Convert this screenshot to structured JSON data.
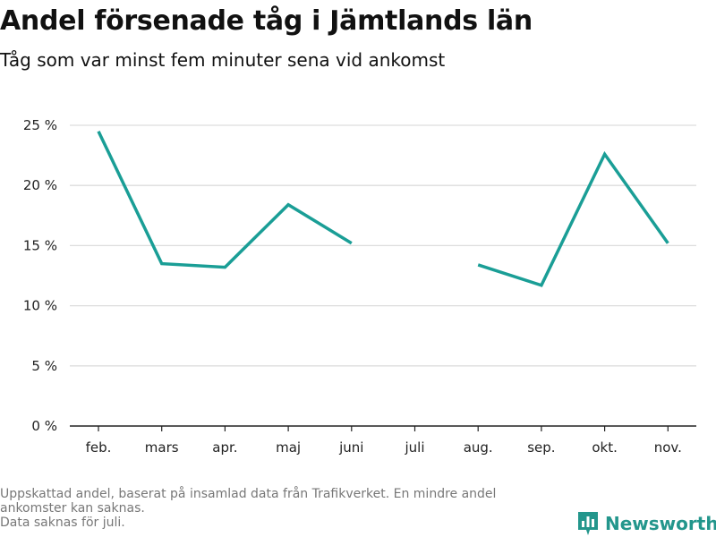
{
  "title": "Andel försenade tåg i Jämtlands län",
  "subtitle": "Tåg som var minst fem minuter sena vid ankomst",
  "footnote": {
    "line1": "Uppskattad andel, baserat på insamlad data från Trafikverket. En mindre andel",
    "line2": "ankomster kan saknas.",
    "line3": "Data saknas för juli."
  },
  "brand": {
    "name": "Newsworthy",
    "icon": "bar-chart-logo-icon",
    "color": "#23968c"
  },
  "colors": {
    "line": "#1a9e96",
    "grid": "#dddddd",
    "axis": "#222222"
  },
  "chart_data": {
    "type": "line",
    "categories": [
      "feb.",
      "mars",
      "apr.",
      "maj",
      "juni",
      "juli",
      "aug.",
      "sep.",
      "okt.",
      "nov."
    ],
    "values": [
      24.5,
      13.5,
      13.2,
      18.4,
      15.2,
      null,
      13.4,
      11.7,
      22.6,
      15.2
    ],
    "yticks": [
      0,
      5,
      10,
      15,
      20,
      25
    ],
    "yticklabels": [
      "0 %",
      "5 %",
      "10 %",
      "15 %",
      "20 %",
      "25 %"
    ],
    "ylim": [
      0,
      25
    ],
    "grid": true,
    "xlabel": "",
    "ylabel": ""
  }
}
